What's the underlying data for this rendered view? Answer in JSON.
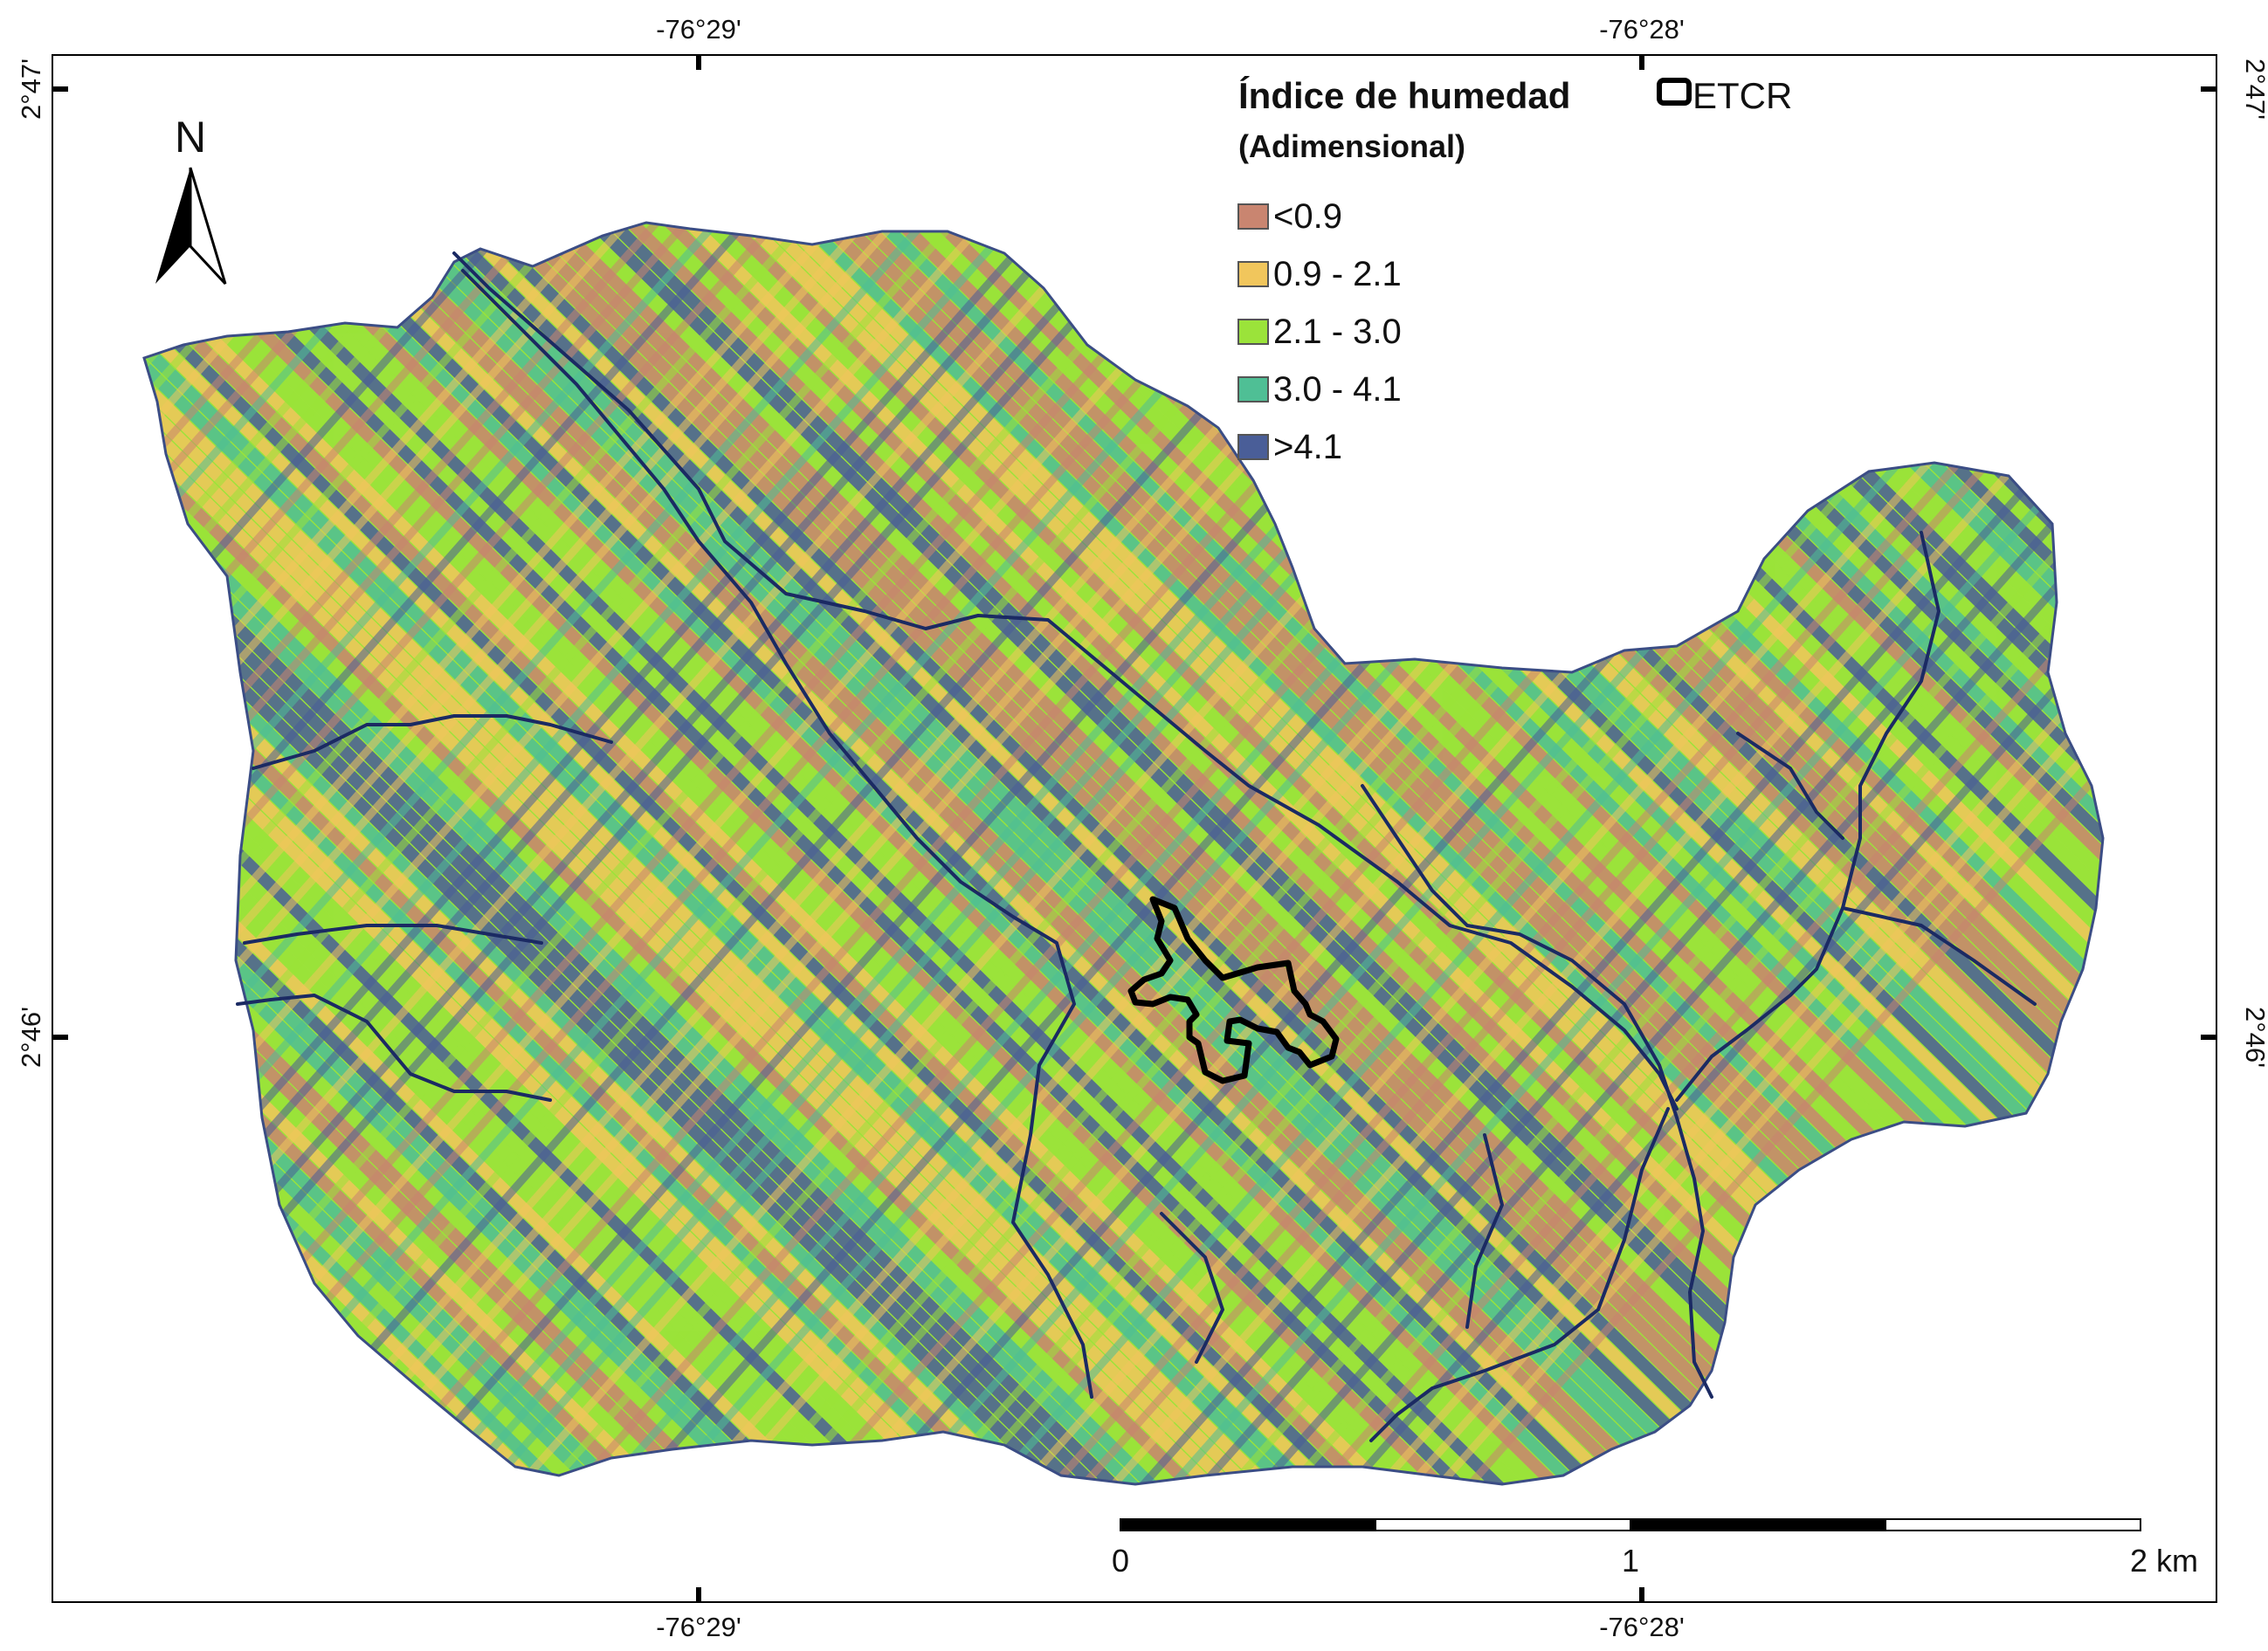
{
  "map": {
    "coordinates": {
      "top": [
        "-76°29'",
        "-76°28'"
      ],
      "bottom": [
        "-76°29'",
        "-76°28'"
      ],
      "left": [
        "2°47'",
        "2°46'"
      ],
      "right": [
        "2°47'",
        "2°46'"
      ]
    },
    "north_arrow": {
      "label": "N"
    }
  },
  "legend": {
    "title": "Índice de humedad",
    "subtitle": "(Adimensional)",
    "boundary_label": "ETCR",
    "classes": [
      {
        "label": "<0.9",
        "color": "#c98570"
      },
      {
        "label": "0.9 - 2.1",
        "color": "#f1c65c"
      },
      {
        "label": "2.1 - 3.0",
        "color": "#9be33a"
      },
      {
        "label": "3.0 - 4.1",
        "color": "#4fbf95"
      },
      {
        "label": ">4.1",
        "color": "#4a5e98"
      }
    ]
  },
  "scale_bar": {
    "labels": [
      "0",
      "1",
      "2 km"
    ]
  },
  "colors": {
    "stream": "#1b2a63",
    "etcr": "#000000",
    "frame": "#000000"
  }
}
